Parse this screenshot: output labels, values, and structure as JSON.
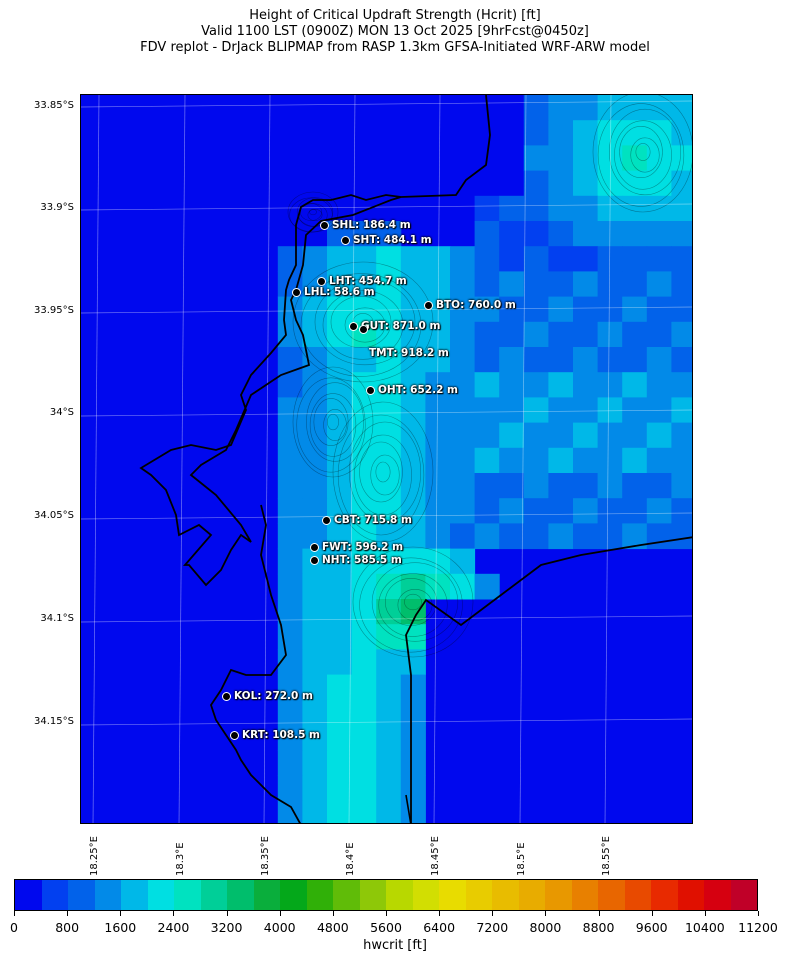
{
  "title": {
    "line1": "Height of Critical Updraft Strength (Hcrit) [ft]",
    "line2": "Valid 1100 LST (0900Z) MON 13 Oct 2025 [9hrFcst@0450z]",
    "line3": "FDV replot - DrJack BLIPMAP from RASP 1.3km GFSA-Initiated WRF-ARW model"
  },
  "map": {
    "lat_labels": [
      "33.85°S",
      "33.9°S",
      "33.95°S",
      "34°S",
      "34.05°S",
      "34.1°S",
      "34.15°S"
    ],
    "lon_labels": [
      "18.25°E",
      "18.3°E",
      "18.35°E",
      "18.4°E",
      "18.45°E",
      "18.5°E",
      "18.55°E"
    ],
    "stations": [
      {
        "code": "SHL",
        "label": "SHL: 186.4 m"
      },
      {
        "code": "SHT",
        "label": "SHT: 484.1 m"
      },
      {
        "code": "LHT",
        "label": "LHT: 454.7 m"
      },
      {
        "code": "LHL",
        "label": "LHL: 58.6 m"
      },
      {
        "code": "BTO",
        "label": "BTO: 760.0 m"
      },
      {
        "code": "GUT",
        "label": "GUT: 871.0 m"
      },
      {
        "code": "TMT",
        "label": "TMT: 918.2 m"
      },
      {
        "code": "OHT",
        "label": "OHT: 652.2 m"
      },
      {
        "code": "CBT",
        "label": "CBT: 715.8 m"
      },
      {
        "code": "FWT",
        "label": "FWT: 596.2 m"
      },
      {
        "code": "NHT",
        "label": "NHT: 585.5 m"
      },
      {
        "code": "KOL",
        "label": "KOL: 272.0 m"
      },
      {
        "code": "KRT",
        "label": "KRT: 108.5 m"
      }
    ]
  },
  "colorbar": {
    "title": "hwcrit [ft]",
    "tick_labels": [
      "0",
      "800",
      "1600",
      "2400",
      "3200",
      "4000",
      "4800",
      "5600",
      "6400",
      "7200",
      "8000",
      "8800",
      "9600",
      "10400",
      "11200"
    ],
    "colors": [
      "#0008ee",
      "#0240f0",
      "#0262ea",
      "#028ae8",
      "#00b8e8",
      "#00dfe2",
      "#00e2c0",
      "#00cf98",
      "#00be6c",
      "#0aae3c",
      "#04a81a",
      "#30b008",
      "#60bc08",
      "#8ec808",
      "#b8d800",
      "#d2de02",
      "#e8dc00",
      "#e8cc00",
      "#e8bc00",
      "#e8ac00",
      "#e89800",
      "#e88000",
      "#e86600",
      "#e84a00",
      "#e82a00",
      "#e01000",
      "#d60010",
      "#c00028"
    ]
  }
}
